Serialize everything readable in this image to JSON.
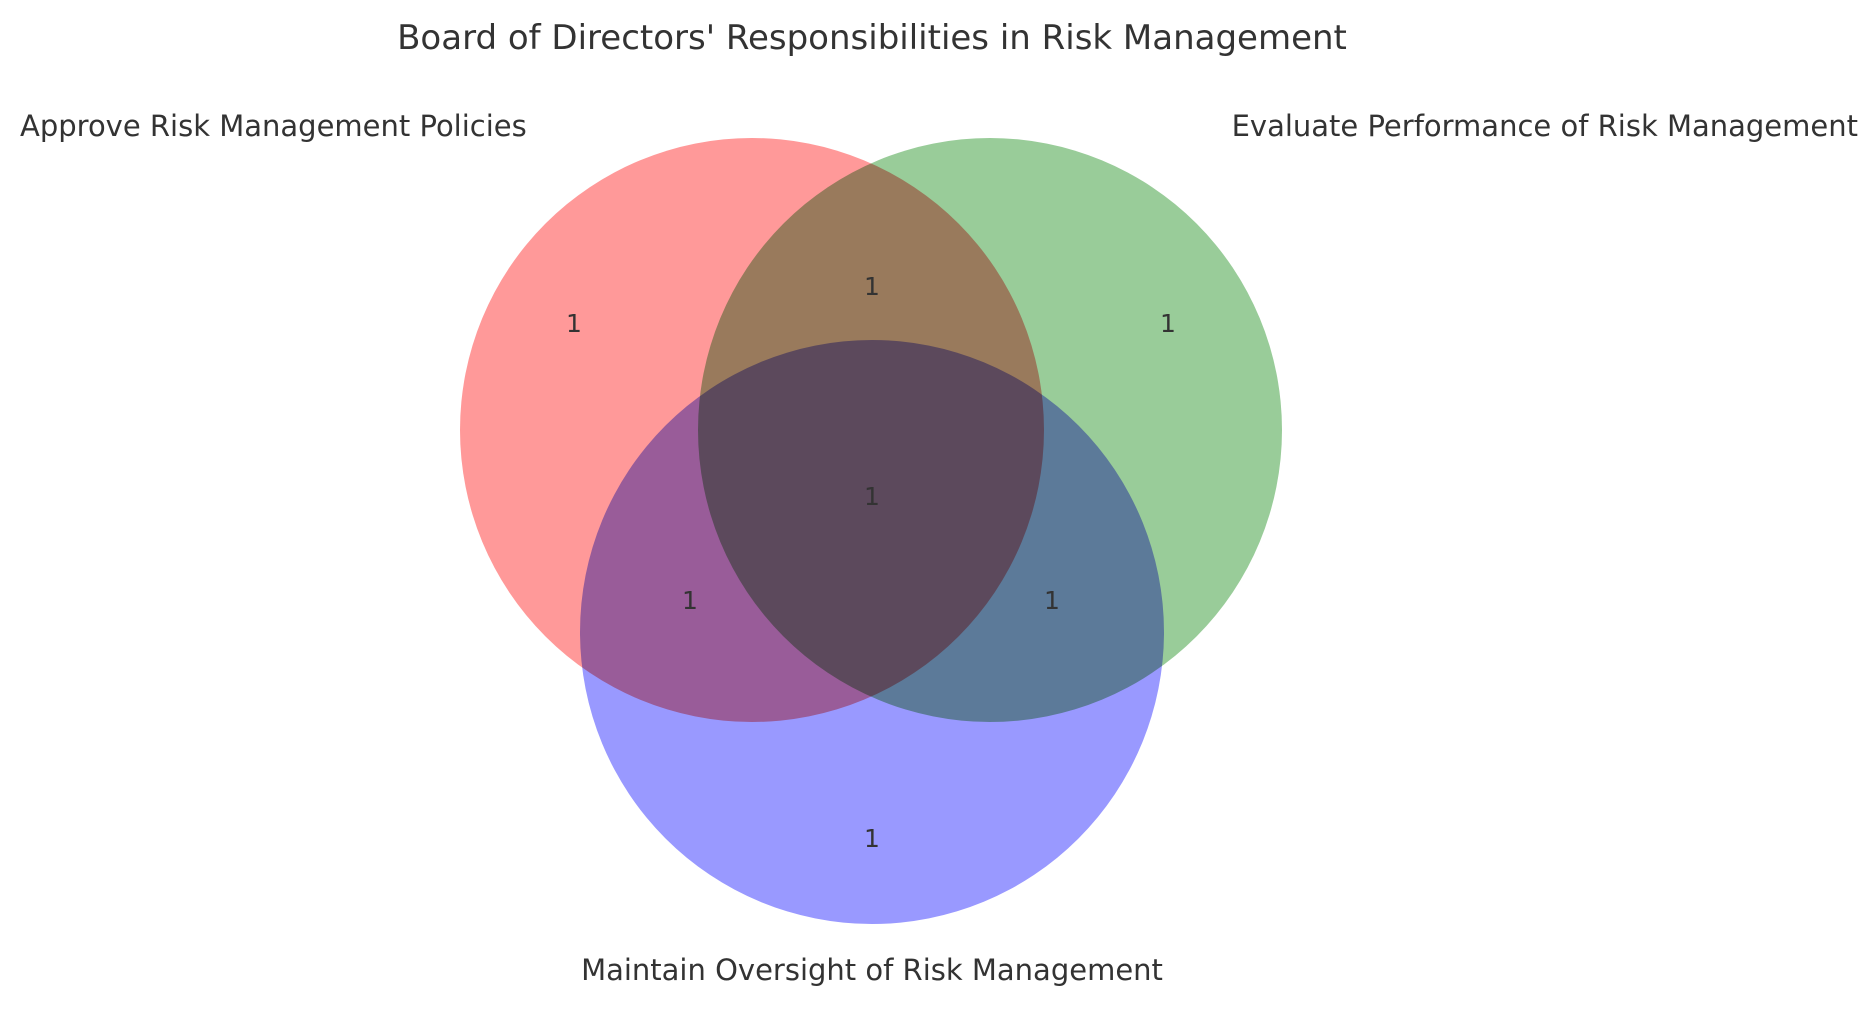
{
  "title": "Board of Directors' Responsibilities in Risk Management",
  "sets": [
    {
      "id": "A",
      "label": "Approve Risk Management Policies",
      "color": "#ff9999"
    },
    {
      "id": "B",
      "label": "Evaluate Performance of Risk Management",
      "color": "#99cc99"
    },
    {
      "id": "C",
      "label": "Maintain Oversight of Risk Management",
      "color": "#9999ff"
    }
  ],
  "regions": {
    "A_only": "1",
    "B_only": "1",
    "C_only": "1",
    "A_and_B": "1",
    "A_and_C": "1",
    "B_and_C": "1",
    "A_and_B_and_C": "1"
  }
}
